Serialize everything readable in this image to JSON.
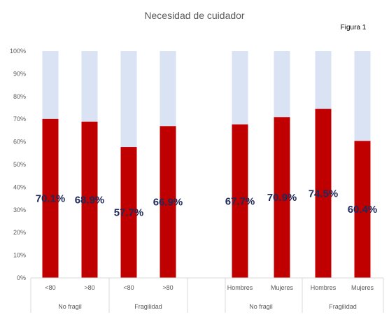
{
  "chart_data": {
    "type": "bar",
    "stacked": true,
    "title": "Necesidad de cuidador",
    "figure_label": "Figura 1",
    "ylim": [
      0,
      100
    ],
    "y_ticks": [
      "0%",
      "10%",
      "20%",
      "30%",
      "40%",
      "50%",
      "60%",
      "70%",
      "80%",
      "90%",
      "100%"
    ],
    "groups": [
      {
        "label": "No fragil",
        "categories": [
          "<80",
          ">80"
        ]
      },
      {
        "label": "Fragilidad",
        "categories": [
          "<80",
          ">80"
        ]
      },
      {
        "label": "No fragil",
        "categories": [
          "Hombres",
          "Mujeres"
        ]
      },
      {
        "label": "Fragilidad",
        "categories": [
          "Hombres",
          "Mujeres"
        ]
      }
    ],
    "values": [
      70.1,
      68.9,
      57.7,
      66.9,
      67.7,
      70.9,
      74.5,
      60.4
    ],
    "data_labels": [
      "70.1%",
      "68.9%",
      "57.7%",
      "66.9%",
      "67.7%",
      "70.9%",
      "74.5%",
      "60.4%"
    ],
    "colors": {
      "primary": "#c00000",
      "remainder": "#dae3f3",
      "label": "#1f2a5a",
      "axis": "#d9d9d9",
      "text": "#595959"
    },
    "grid": false,
    "legend": "none"
  }
}
